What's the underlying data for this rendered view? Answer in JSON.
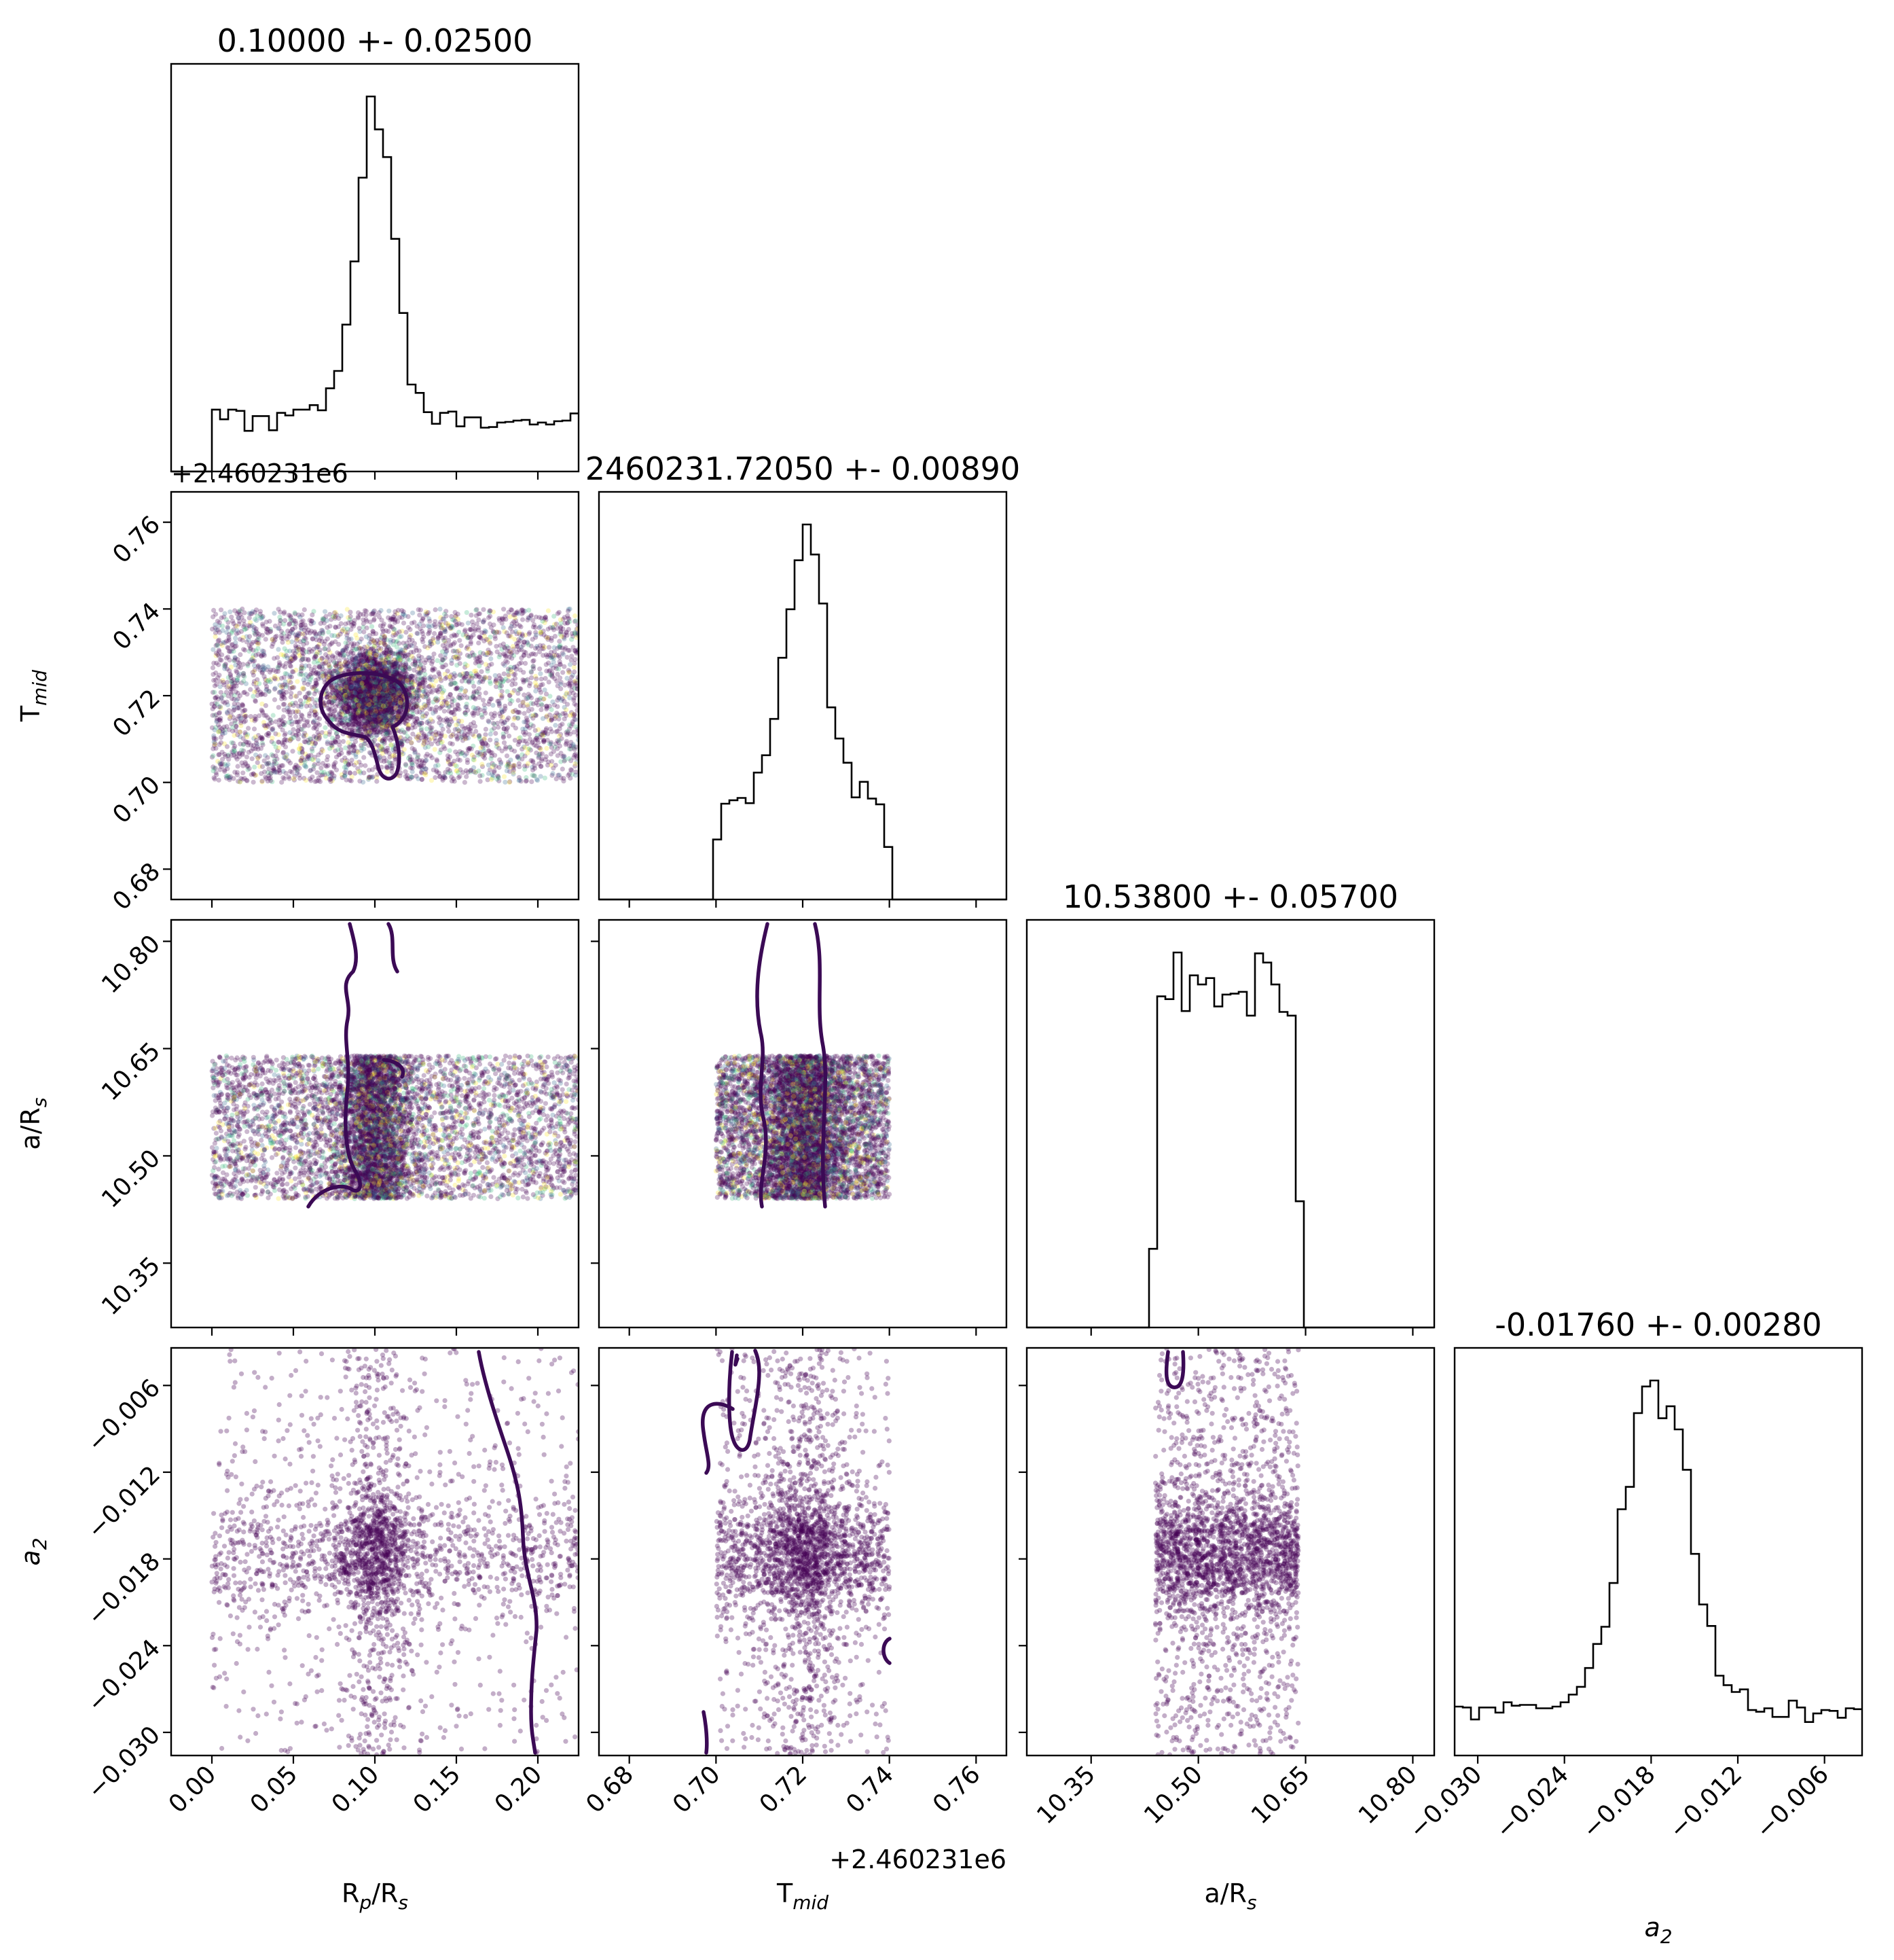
{
  "chart_data": {
    "type": "scatter",
    "kind": "corner-plot",
    "parameters": [
      {
        "key": "rprs",
        "label_main": "R",
        "label_sub": "p",
        "label_suffix_main": "/R",
        "label_suffix_sub": "s",
        "title": "0.10000 +- 0.02500",
        "median": 0.1,
        "sigma": 0.025,
        "range": [
          -0.025,
          0.225
        ],
        "ticks": [
          0.0,
          0.05,
          0.1,
          0.15,
          0.2
        ],
        "tick_labels": [
          "0.00",
          "0.05",
          "0.10",
          "0.15",
          "0.20"
        ],
        "sample_range": [
          0.0,
          0.225
        ]
      },
      {
        "key": "tmid",
        "label_main": "T",
        "label_sub": "mid",
        "label_suffix_main": "",
        "label_suffix_sub": "",
        "title": "2460231.72050 +- 0.00890",
        "median": 0.7205,
        "sigma": 0.0089,
        "range": [
          0.673,
          0.767
        ],
        "ticks": [
          0.68,
          0.7,
          0.72,
          0.74,
          0.76
        ],
        "tick_labels": [
          "0.68",
          "0.70",
          "0.72",
          "0.74",
          "0.76"
        ],
        "offset": "+2.460231e6",
        "sample_range": [
          0.7,
          0.74
        ]
      },
      {
        "key": "ars",
        "label_main": "a/R",
        "label_sub": "s",
        "label_suffix_main": "",
        "label_suffix_sub": "",
        "title": "10.53800 +- 0.05700",
        "median": 10.538,
        "sigma": 0.057,
        "range": [
          10.26,
          10.83
        ],
        "ticks": [
          10.35,
          10.5,
          10.65,
          10.8
        ],
        "tick_labels": [
          "10.35",
          "10.50",
          "10.65",
          "10.80"
        ],
        "sample_range": [
          10.44,
          10.64
        ]
      },
      {
        "key": "a2",
        "label_main": "a",
        "label_sub": "2",
        "label_suffix_main": "",
        "label_suffix_sub": "",
        "italic": true,
        "title": "-0.01760 +- 0.00280",
        "median": -0.0176,
        "sigma": 0.0028,
        "range": [
          -0.0316,
          -0.0034
        ],
        "ticks": [
          -0.03,
          -0.024,
          -0.018,
          -0.012,
          -0.006
        ],
        "tick_labels": [
          "−0.030",
          "−0.024",
          "−0.018",
          "−0.012",
          "−0.006"
        ],
        "sample_range": [
          -0.0316,
          -0.0034
        ]
      }
    ],
    "scatter_colors": [
      "#440154",
      "#3b0a55",
      "#31688e",
      "#35b779",
      "#fde725"
    ],
    "contour_color": "#3b0a55",
    "grid": false
  }
}
